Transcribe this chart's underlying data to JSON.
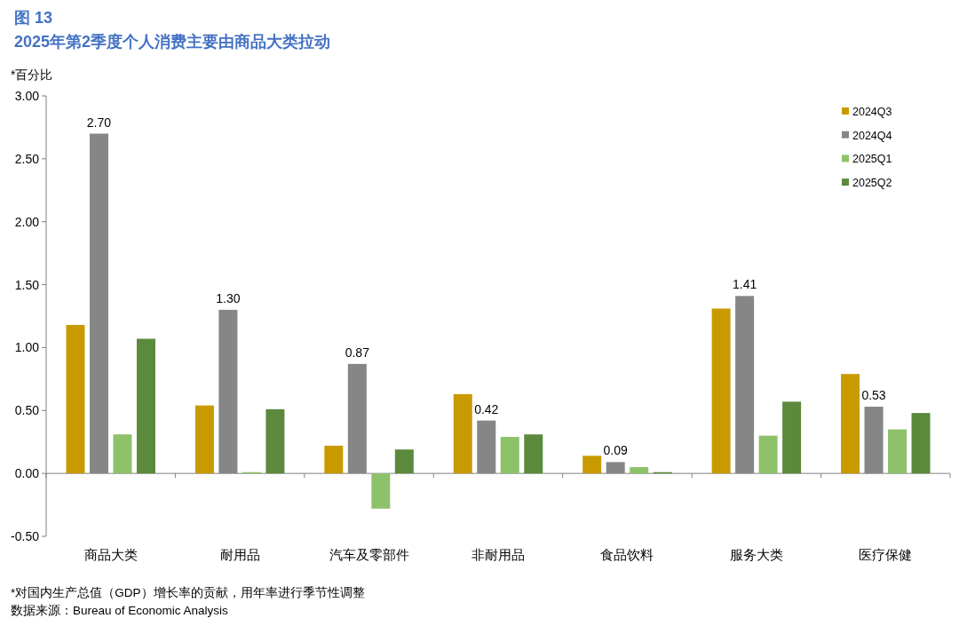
{
  "chart_data": {
    "type": "bar",
    "title": "图 13",
    "subtitle": "2025年第2季度个人消费主要由商品大类拉动",
    "ylabel": "*百分比",
    "categories": [
      "商品大类",
      "耐用品",
      "汽车及零部件",
      "非耐用品",
      "食品饮料",
      "服务大类",
      "医疗保健"
    ],
    "series": [
      {
        "name": "2024Q3",
        "color": "#c99a00",
        "values": [
          1.18,
          0.54,
          0.22,
          0.63,
          0.14,
          1.31,
          0.79
        ]
      },
      {
        "name": "2024Q4",
        "color": "#868686",
        "values": [
          2.7,
          1.3,
          0.87,
          0.42,
          0.09,
          1.41,
          0.53
        ],
        "value_labels": [
          "2.70",
          "1.30",
          "0.87",
          "0.42",
          "0.09",
          "1.41",
          "0.53"
        ]
      },
      {
        "name": "2025Q1",
        "color": "#8dc26b",
        "values": [
          0.31,
          0.01,
          -0.28,
          0.29,
          0.05,
          0.3,
          0.35
        ]
      },
      {
        "name": "2025Q2",
        "color": "#5b8a3c",
        "values": [
          1.07,
          0.51,
          0.19,
          0.31,
          0.01,
          0.57,
          0.48
        ]
      }
    ],
    "ylim": [
      -0.5,
      3.0
    ],
    "yticks": [
      {
        "value": -0.5,
        "label": "-0.50"
      },
      {
        "value": 0,
        "label": "0.00"
      },
      {
        "value": 0.5,
        "label": "0.50"
      },
      {
        "value": 1,
        "label": "1.00"
      },
      {
        "value": 1.5,
        "label": "1.50"
      },
      {
        "value": 2,
        "label": "2.00"
      },
      {
        "value": 2.5,
        "label": "2.50"
      },
      {
        "value": 3,
        "label": "3.00"
      }
    ],
    "legend": "top right",
    "annotations": [
      "*对国内生产总值（GDP）增长率的贡献，用年率进行季节性调整",
      "数据来源：Bureau of Economic Analysis"
    ]
  }
}
